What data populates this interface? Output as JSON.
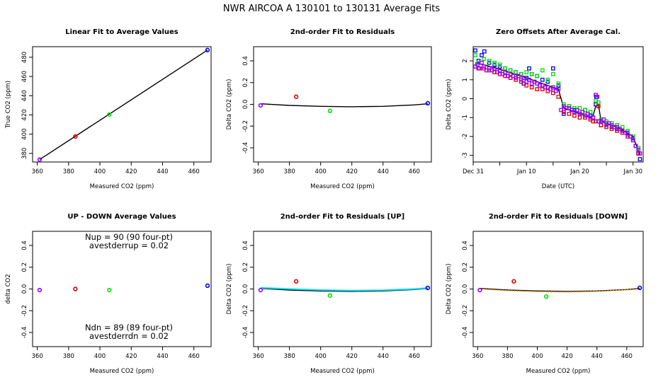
{
  "figure": {
    "title": "NWR   AIRCOA A   130101 to 130131   Average Fits"
  },
  "colors": {
    "purple": "#9900ff",
    "red": "#e00000",
    "green": "#00e000",
    "blue": "#0000ff",
    "black": "#000000",
    "cyan": "#00e0ff",
    "orange": "#ff9900"
  },
  "chart_data": [
    {
      "type": "scatter",
      "title": "Linear Fit to Average Values",
      "xlabel": "Measured CO2 (ppm)",
      "ylabel": "True CO2 (ppm)",
      "xlim": [
        357,
        471
      ],
      "ylim": [
        371,
        491
      ],
      "xticks": [
        360,
        380,
        400,
        420,
        440,
        460
      ],
      "yticks": [
        380,
        400,
        420,
        440,
        460,
        480
      ],
      "points": [
        {
          "x": 361.5,
          "y": 373.5,
          "color": "purple"
        },
        {
          "x": 384.3,
          "y": 397.5,
          "color": "red"
        },
        {
          "x": 406.0,
          "y": 420.4,
          "color": "green"
        },
        {
          "x": 468.7,
          "y": 487.5,
          "color": "blue"
        }
      ],
      "lines": [
        {
          "color": "black",
          "x": [
            361.5,
            468.7
          ],
          "y": [
            373.5,
            487.5
          ]
        }
      ]
    },
    {
      "type": "scatter",
      "title": "2nd-order Fit to Residuals",
      "xlabel": "Measured CO2 (ppm)",
      "ylabel": "Delta CO2 (ppm)",
      "xlim": [
        357,
        471
      ],
      "ylim": [
        -0.53,
        0.53
      ],
      "xticks": [
        360,
        380,
        400,
        420,
        440,
        460
      ],
      "yticks": [
        -0.4,
        -0.2,
        0.0,
        0.2,
        0.4
      ],
      "yticklabels": [
        "-0.4",
        "-0.2",
        "0.0",
        "0.2",
        "0.4"
      ],
      "points": [
        {
          "x": 361.5,
          "y": -0.01,
          "color": "purple"
        },
        {
          "x": 384.3,
          "y": 0.07,
          "color": "red"
        },
        {
          "x": 406.0,
          "y": -0.06,
          "color": "green"
        },
        {
          "x": 468.7,
          "y": 0.01,
          "color": "blue"
        }
      ],
      "lines": [
        {
          "color": "black",
          "x": [
            361.5,
            380,
            400,
            420,
            440,
            460,
            468.7
          ],
          "y": [
            0.005,
            -0.01,
            -0.018,
            -0.022,
            -0.018,
            -0.005,
            0.005
          ]
        }
      ]
    },
    {
      "type": "scatter",
      "title": "Zero Offsets After Average Cal.",
      "xlabel": "Date (UTC)",
      "ylabel": "Delta CO2 (ppm)",
      "xlim": [
        0,
        31.9
      ],
      "ylim": [
        -3.35,
        2.75
      ],
      "xticks": [
        0,
        5,
        10,
        15,
        20,
        25,
        30
      ],
      "xticklabels": [
        "Dec 31",
        "",
        "Jan 10",
        "",
        "Jan 20",
        "",
        "Jan 30"
      ],
      "yticks": [
        -3,
        -2,
        -1,
        0,
        1,
        2
      ],
      "series": [
        {
          "color": "blue",
          "x": [
            0.4,
            1,
            1.6,
            2.1,
            3,
            4,
            5,
            6,
            7,
            8,
            9,
            9.5,
            10,
            10.5,
            11,
            12,
            13,
            14,
            15,
            16,
            17,
            18,
            19,
            20,
            21,
            22,
            22.5,
            23,
            23.1,
            23.5,
            24,
            25,
            26,
            27,
            28,
            29,
            29.5,
            30,
            30.5,
            31,
            31.3
          ],
          "y": [
            2.55,
            2.0,
            2.3,
            2.5,
            1.9,
            1.8,
            1.7,
            1.6,
            1.5,
            1.4,
            1.3,
            0.8,
            1.1,
            1.6,
            1.3,
            1.2,
            1.0,
            0.9,
            1.6,
            0.7,
            -0.8,
            -0.4,
            -0.6,
            -0.8,
            -0.6,
            -0.9,
            -1.0,
            -0.3,
            0.1,
            -1.2,
            -1.4,
            -1.4,
            -1.5,
            -1.6,
            -1.7,
            -1.8,
            -2.0,
            -2.1,
            -2.5,
            -2.9,
            -3.2
          ]
        },
        {
          "color": "green",
          "x": [
            0.4,
            1,
            2,
            3,
            4,
            5,
            6,
            7,
            8,
            9,
            10,
            11,
            12,
            13,
            14,
            15,
            16,
            17,
            18,
            19,
            20,
            21,
            22,
            23,
            23.5,
            24,
            25,
            26,
            27,
            28,
            29,
            30,
            31
          ],
          "y": [
            2.3,
            1.9,
            2.1,
            2.0,
            1.9,
            1.8,
            1.6,
            1.5,
            1.4,
            1.3,
            1.4,
            1.3,
            1.2,
            1.5,
            1.0,
            1.3,
            0.8,
            -0.3,
            -0.4,
            -0.5,
            -0.5,
            -0.6,
            -0.7,
            -0.1,
            -0.2,
            -1.1,
            -1.2,
            -1.3,
            -1.4,
            -1.5,
            -1.7,
            -2.0,
            -2.6
          ]
        },
        {
          "color": "red",
          "x": [
            0.4,
            1,
            2,
            3,
            4,
            5,
            6,
            7,
            8,
            9,
            10,
            11,
            12,
            13,
            14,
            15,
            16,
            17,
            18,
            19,
            20,
            21,
            22,
            22.5,
            23,
            23.5,
            24,
            25,
            26,
            27,
            28,
            29,
            30,
            31
          ],
          "y": [
            1.7,
            1.6,
            1.6,
            1.5,
            1.4,
            1.3,
            1.2,
            1.1,
            1.0,
            0.9,
            0.7,
            0.6,
            0.5,
            0.5,
            0.4,
            0.3,
            0.1,
            -0.7,
            -0.8,
            -0.9,
            -1.0,
            -1.0,
            -1.1,
            -1.2,
            -1.2,
            -0.4,
            -1.4,
            -1.5,
            -1.6,
            -1.7,
            -1.8,
            -2.0,
            -2.2,
            -2.9
          ]
        },
        {
          "color": "purple",
          "x": [
            0.4,
            0.8,
            1.2,
            1.6,
            2,
            2.5,
            3,
            3.5,
            4,
            4.5,
            5,
            5.5,
            6,
            6.5,
            7,
            7.5,
            8,
            8.5,
            9,
            9.5,
            10,
            10.5,
            11,
            11.5,
            12,
            12.5,
            13,
            13.5,
            14,
            14.5,
            15,
            15.5,
            16,
            16.5,
            17,
            17.5,
            18,
            18.5,
            19,
            19.5,
            20,
            20.5,
            21,
            21.5,
            22,
            22.5,
            23,
            23.3,
            23.6,
            24,
            24.5,
            25,
            25.5,
            26,
            26.5,
            27,
            27.5,
            28,
            28.5,
            29,
            29.5,
            30,
            30.5,
            31,
            31.3
          ],
          "y": [
            1.7,
            1.8,
            1.6,
            1.9,
            1.7,
            1.5,
            1.6,
            1.5,
            1.6,
            1.4,
            1.5,
            1.3,
            1.4,
            1.2,
            1.3,
            1.2,
            1.1,
            1.2,
            1.0,
            1.1,
            0.9,
            1.0,
            0.8,
            0.9,
            0.8,
            0.7,
            0.7,
            0.6,
            0.6,
            0.5,
            0.6,
            0.4,
            0.5,
            -0.6,
            -0.4,
            -0.5,
            -0.5,
            -0.6,
            -0.7,
            -0.6,
            -0.8,
            -0.7,
            -0.9,
            -0.8,
            -1.0,
            -1.0,
            0.2,
            0.1,
            -1.2,
            -1.2,
            -1.1,
            -1.3,
            -1.3,
            -1.4,
            -1.5,
            -1.5,
            -1.6,
            -1.7,
            -1.8,
            -1.9,
            -2.0,
            -2.2,
            -2.5,
            -2.7,
            -2.9
          ]
        }
      ],
      "lines": [
        {
          "color": "black",
          "x": [
            0.4,
            2,
            5,
            10,
            15,
            16,
            17,
            20,
            22,
            22.5,
            23,
            23.5,
            24,
            27,
            30,
            31.3
          ],
          "y": [
            1.9,
            1.8,
            1.55,
            1.1,
            0.6,
            0.5,
            -0.5,
            -0.8,
            -1.0,
            -0.9,
            -0.4,
            -0.3,
            -1.2,
            -1.5,
            -2.0,
            -3.0
          ]
        }
      ]
    },
    {
      "type": "scatter",
      "title": "UP - DOWN Average Values",
      "xlabel": "Measured CO2 (ppm)",
      "ylabel": "delta CO2",
      "xlim": [
        357,
        471
      ],
      "ylim": [
        -0.53,
        0.53
      ],
      "xticks": [
        360,
        380,
        400,
        420,
        440,
        460
      ],
      "yticks": [
        -0.4,
        -0.2,
        0.0,
        0.2,
        0.4
      ],
      "yticklabels": [
        "-0.4",
        "-0.2",
        "0.0",
        "0.2",
        "0.4"
      ],
      "annotations": [
        {
          "lines": [
            "Nup = 90 (90 four-pt)",
            "avestderrup =  0.02"
          ],
          "pos": "top"
        },
        {
          "lines": [
            "Ndn = 89 (89 four-pt)",
            "avestderrdn =  0.02"
          ],
          "pos": "bottom"
        }
      ],
      "points": [
        {
          "x": 361.5,
          "y": -0.01,
          "color": "purple"
        },
        {
          "x": 384.3,
          "y": 0.0,
          "color": "red"
        },
        {
          "x": 406.0,
          "y": -0.01,
          "color": "green"
        },
        {
          "x": 468.7,
          "y": 0.03,
          "color": "blue"
        }
      ],
      "lines": []
    },
    {
      "type": "scatter",
      "title": "2nd-order Fit to Residuals [UP]",
      "xlabel": "Measured CO2 (ppm)",
      "ylabel": "Delta CO2 (ppm)",
      "xlim": [
        357,
        471
      ],
      "ylim": [
        -0.53,
        0.53
      ],
      "xticks": [
        360,
        380,
        400,
        420,
        440,
        460
      ],
      "yticks": [
        -0.4,
        -0.2,
        0.0,
        0.2,
        0.4
      ],
      "yticklabels": [
        "-0.4",
        "-0.2",
        "0.0",
        "0.2",
        "0.4"
      ],
      "points": [
        {
          "x": 361.5,
          "y": -0.01,
          "color": "purple"
        },
        {
          "x": 384.3,
          "y": 0.07,
          "color": "red"
        },
        {
          "x": 406.0,
          "y": -0.06,
          "color": "green"
        },
        {
          "x": 468.7,
          "y": 0.01,
          "color": "blue"
        }
      ],
      "lines": [
        {
          "color": "black",
          "x": [
            361.5,
            380,
            400,
            420,
            440,
            460,
            468.7
          ],
          "y": [
            0.005,
            -0.01,
            -0.018,
            -0.022,
            -0.018,
            -0.005,
            0.005
          ]
        },
        {
          "color": "cyan",
          "x": [
            361.5,
            380,
            400,
            420,
            440,
            460,
            468.7
          ],
          "y": [
            0.012,
            0.0,
            -0.01,
            -0.015,
            -0.012,
            0.0,
            0.01
          ],
          "dashed": true
        }
      ]
    },
    {
      "type": "scatter",
      "title": "2nd-order Fit to Residuals [DOWN]",
      "xlabel": "Measured CO2 (ppm)",
      "ylabel": "Delta CO2 (ppm)",
      "xlim": [
        357,
        471
      ],
      "ylim": [
        -0.53,
        0.53
      ],
      "xticks": [
        360,
        380,
        400,
        420,
        440,
        460
      ],
      "yticks": [
        -0.4,
        -0.2,
        0.0,
        0.2,
        0.4
      ],
      "yticklabels": [
        "-0.4",
        "-0.2",
        "0.0",
        "0.2",
        "0.4"
      ],
      "points": [
        {
          "x": 361.5,
          "y": -0.01,
          "color": "purple"
        },
        {
          "x": 384.3,
          "y": 0.07,
          "color": "red"
        },
        {
          "x": 406.0,
          "y": -0.07,
          "color": "green"
        },
        {
          "x": 468.7,
          "y": 0.01,
          "color": "blue"
        }
      ],
      "lines": [
        {
          "color": "black",
          "x": [
            361.5,
            380,
            400,
            420,
            440,
            460,
            468.7
          ],
          "y": [
            0.005,
            -0.01,
            -0.018,
            -0.022,
            -0.018,
            -0.005,
            0.005
          ]
        },
        {
          "color": "orange",
          "x": [
            361.5,
            380,
            400,
            420,
            440,
            460,
            468.7
          ],
          "y": [
            0.0,
            -0.015,
            -0.025,
            -0.028,
            -0.022,
            -0.008,
            0.0
          ],
          "dotted": true
        }
      ]
    }
  ]
}
